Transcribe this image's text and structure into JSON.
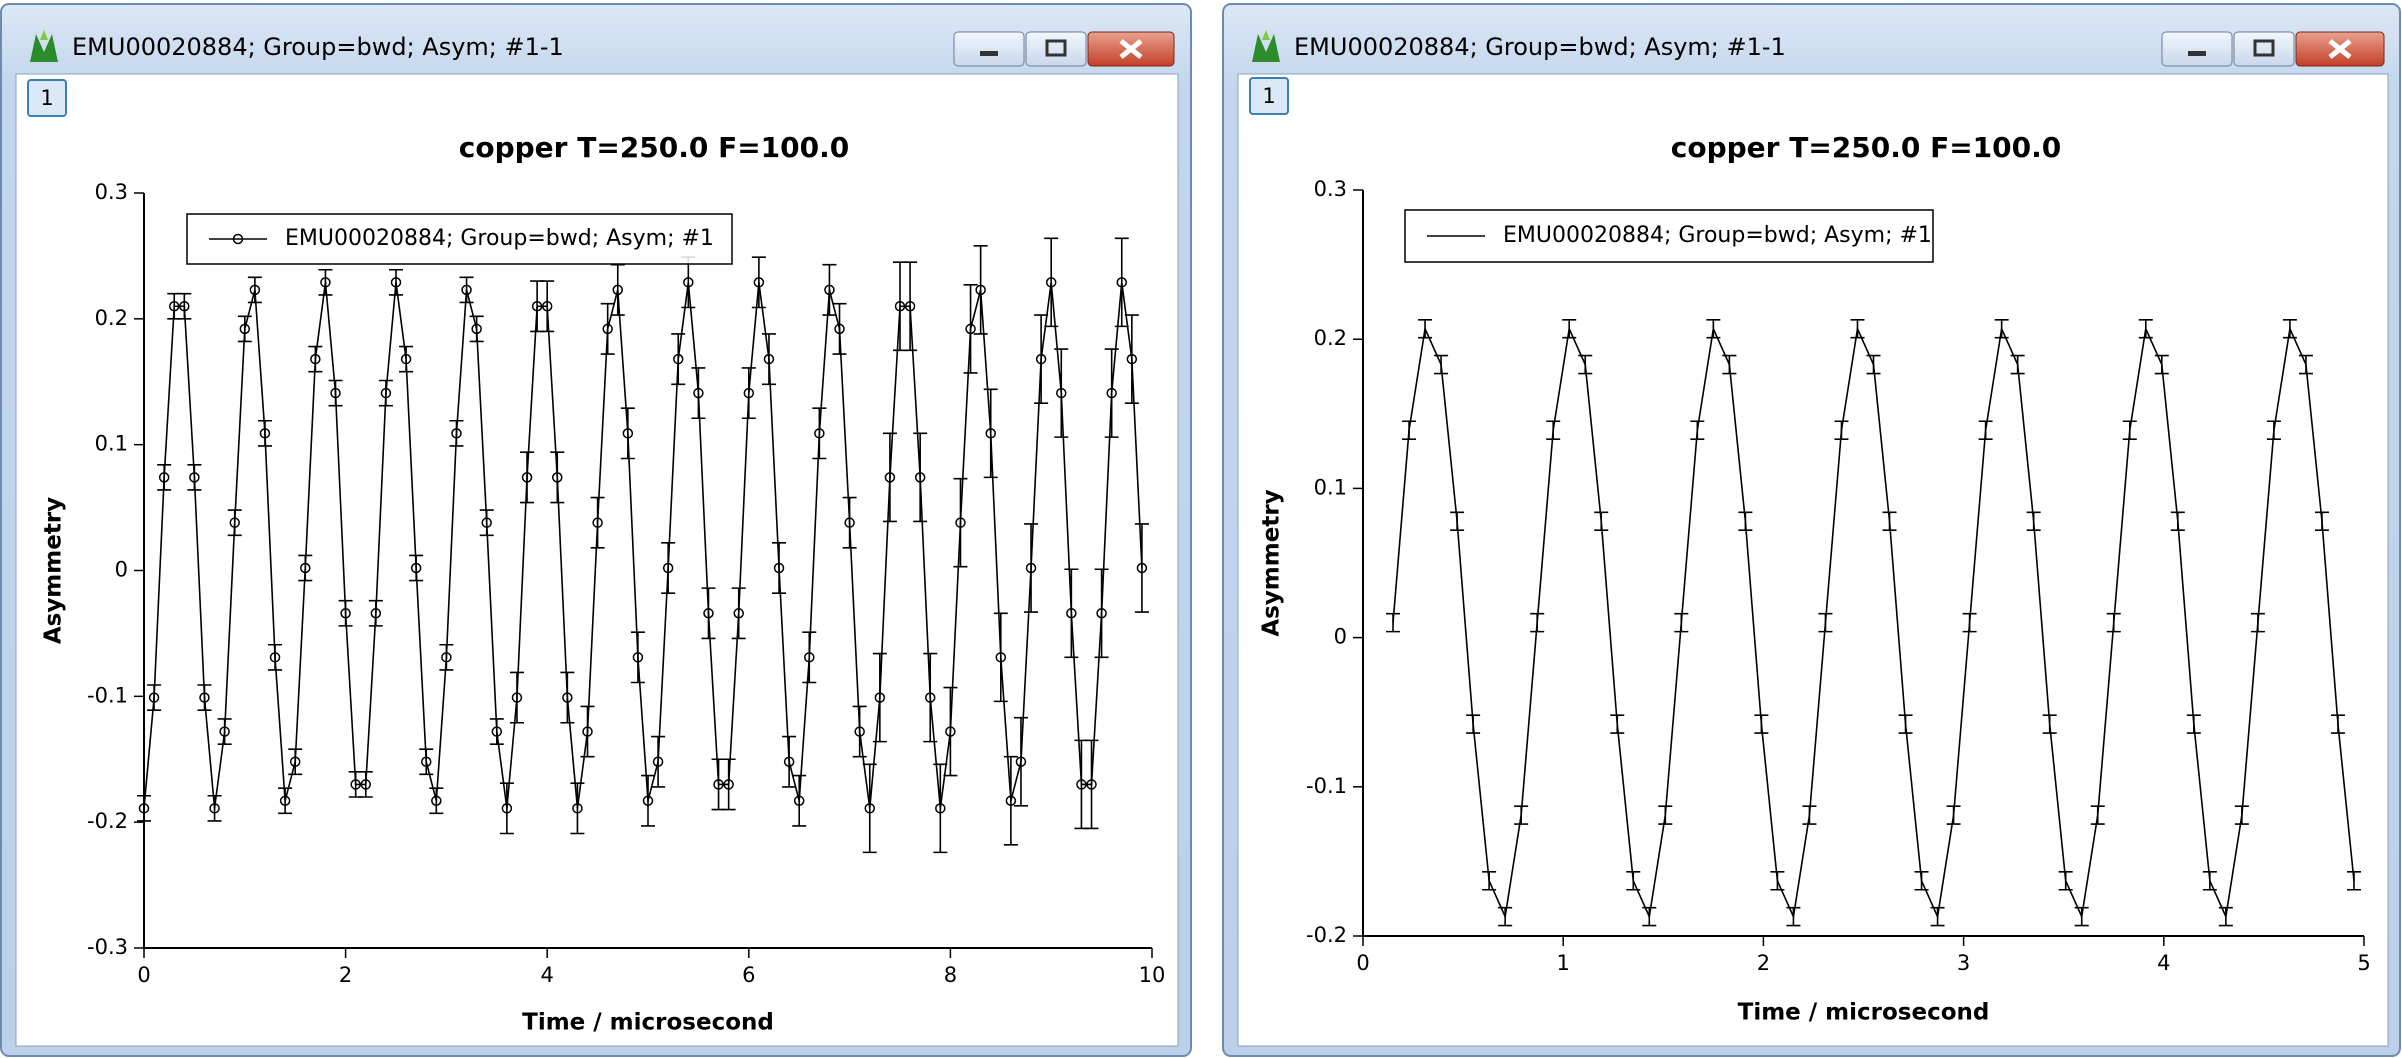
{
  "windows": [
    {
      "title": "EMU00020884; Group=bwd; Asym; #1-1",
      "tab": "1"
    },
    {
      "title": "EMU00020884; Group=bwd; Asym; #1-1",
      "tab": "1"
    }
  ],
  "chart_data": [
    {
      "type": "line",
      "title": "copper T=250.0 F=100.0",
      "xlabel": "Time / microsecond",
      "ylabel": "Asymmetry",
      "xlim": [
        0,
        10
      ],
      "ylim": [
        -0.3,
        0.3
      ],
      "xticks": [
        0,
        2,
        4,
        6,
        8,
        10
      ],
      "yticks": [
        -0.3,
        -0.2,
        -0.1,
        0,
        0.1,
        0.2,
        0.3
      ],
      "markers": true,
      "legend": "top-left",
      "x": [
        0,
        0.1,
        0.2,
        0.3,
        0.4,
        0.5,
        0.6,
        0.7,
        0.8,
        0.9,
        1,
        1.1,
        1.2,
        1.3,
        1.4,
        1.5,
        1.6,
        1.7,
        1.8,
        1.9,
        2,
        2.1,
        2.2,
        2.3,
        2.4,
        2.5,
        2.6,
        2.7,
        2.8,
        2.9,
        3,
        3.1,
        3.2,
        3.3,
        3.4,
        3.5,
        3.6,
        3.7,
        3.8,
        3.9,
        4,
        4.1,
        4.2,
        4.3,
        4.4,
        4.5,
        4.6,
        4.7,
        4.8,
        4.9,
        5,
        5.1,
        5.2,
        5.3,
        5.4,
        5.5,
        5.6,
        5.7,
        5.8,
        5.9,
        6,
        6.1,
        6.2,
        6.3,
        6.4,
        6.5,
        6.6,
        6.7,
        6.8,
        6.9,
        7,
        7.1,
        7.2,
        7.3,
        7.4,
        7.5,
        7.6,
        7.7,
        7.8,
        7.9,
        8,
        8.1,
        8.2,
        8.3,
        8.4,
        8.5,
        8.6,
        8.7,
        8.8,
        8.9,
        9,
        9.1,
        9.2,
        9.3,
        9.4,
        9.5,
        9.6,
        9.7,
        9.8,
        9.9
      ],
      "series": [
        {
          "name": "EMU00020884; Group=bwd; Asym; #1",
          "color": "#000000",
          "values": [
            -0.189,
            -0.101,
            0.074,
            0.21,
            0.21,
            0.074,
            -0.101,
            -0.189,
            -0.128,
            0.038,
            0.192,
            0.223,
            0.109,
            -0.069,
            -0.183,
            -0.152,
            0.002,
            0.168,
            0.229,
            0.141,
            -0.034,
            -0.17,
            -0.17,
            -0.034,
            0.141,
            0.229,
            0.168,
            0.002,
            -0.152,
            -0.183,
            -0.069,
            0.109,
            0.223,
            0.192,
            0.038,
            -0.128,
            -0.189,
            -0.101,
            0.074,
            0.21,
            0.21,
            0.074,
            -0.101,
            -0.189,
            -0.128,
            0.038,
            0.192,
            0.223,
            0.109,
            -0.069,
            -0.183,
            -0.152,
            0.002,
            0.168,
            0.229,
            0.141,
            -0.034,
            -0.17,
            -0.17,
            -0.034,
            0.141,
            0.229,
            0.168,
            0.002,
            -0.152,
            -0.183,
            -0.069,
            0.109,
            0.223,
            0.192,
            0.038,
            -0.128,
            -0.189,
            -0.101,
            0.074,
            0.21,
            0.21,
            0.074,
            -0.101,
            -0.189,
            -0.128,
            0.038,
            0.192,
            0.223,
            0.109,
            -0.069,
            -0.183,
            -0.152,
            0.002,
            0.168,
            0.229,
            0.141,
            -0.034,
            -0.17,
            -0.17,
            -0.034,
            0.141,
            0.229,
            0.168,
            0.002
          ],
          "errors": [
            0.01,
            0.01,
            0.01,
            0.01,
            0.01,
            0.01,
            0.01,
            0.01,
            0.01,
            0.01,
            0.01,
            0.01,
            0.01,
            0.01,
            0.01,
            0.01,
            0.01,
            0.01,
            0.01,
            0.01,
            0.01,
            0.01,
            0.01,
            0.01,
            0.01,
            0.01,
            0.01,
            0.01,
            0.01,
            0.01,
            0.01,
            0.01,
            0.01,
            0.01,
            0.01,
            0.01,
            0.02,
            0.02,
            0.02,
            0.02,
            0.02,
            0.02,
            0.02,
            0.02,
            0.02,
            0.02,
            0.02,
            0.02,
            0.02,
            0.02,
            0.02,
            0.02,
            0.02,
            0.02,
            0.02,
            0.02,
            0.02,
            0.02,
            0.02,
            0.02,
            0.02,
            0.02,
            0.02,
            0.02,
            0.02,
            0.02,
            0.02,
            0.02,
            0.02,
            0.02,
            0.02,
            0.02,
            0.035,
            0.035,
            0.035,
            0.035,
            0.035,
            0.035,
            0.035,
            0.035,
            0.035,
            0.035,
            0.035,
            0.035,
            0.035,
            0.035,
            0.035,
            0.035,
            0.035,
            0.035,
            0.035,
            0.035,
            0.035,
            0.035,
            0.035,
            0.035,
            0.035,
            0.035,
            0.035,
            0.035
          ]
        }
      ]
    },
    {
      "type": "line",
      "title": "copper T=250.0 F=100.0",
      "xlabel": "Time / microsecond",
      "ylabel": "Asymmetry",
      "xlim": [
        0,
        5
      ],
      "ylim": [
        -0.2,
        0.3
      ],
      "xticks": [
        0,
        1,
        2,
        3,
        4,
        5
      ],
      "yticks": [
        -0.2,
        -0.1,
        0,
        0.1,
        0.2,
        0.3
      ],
      "markers": false,
      "legend": "top-left",
      "x": [
        0.15,
        0.23,
        0.31,
        0.39,
        0.47,
        0.55,
        0.63,
        0.71,
        0.79,
        0.87,
        0.95,
        1.03,
        1.11,
        1.19,
        1.27,
        1.35,
        1.43,
        1.51,
        1.59,
        1.67,
        1.75,
        1.83,
        1.91,
        1.99,
        2.07,
        2.15,
        2.23,
        2.31,
        2.39,
        2.47,
        2.55,
        2.63,
        2.71,
        2.79,
        2.87,
        2.95,
        3.03,
        3.11,
        3.19,
        3.27,
        3.35,
        3.43,
        3.51,
        3.59,
        3.67,
        3.75,
        3.83,
        3.91,
        3.99,
        4.07,
        4.15,
        4.23,
        4.31,
        4.39,
        4.47,
        4.55,
        4.63,
        4.71,
        4.79,
        4.87,
        4.95
      ],
      "series": [
        {
          "name": "EMU00020884; Group=bwd; Asym; #1",
          "color": "#000000",
          "values": [
            0.01,
            0.139,
            0.207,
            0.183,
            0.078,
            -0.058,
            -0.163,
            -0.187,
            -0.119,
            0.01,
            0.139,
            0.207,
            0.183,
            0.078,
            -0.058,
            -0.163,
            -0.187,
            -0.119,
            0.01,
            0.139,
            0.207,
            0.183,
            0.078,
            -0.058,
            -0.163,
            -0.187,
            -0.119,
            0.01,
            0.139,
            0.207,
            0.183,
            0.078,
            -0.058,
            -0.163,
            -0.187,
            -0.119,
            0.01,
            0.139,
            0.207,
            0.183,
            0.078,
            -0.058,
            -0.163,
            -0.187,
            -0.119,
            0.01,
            0.139,
            0.207,
            0.183,
            0.078,
            -0.058,
            -0.163,
            -0.187,
            -0.119,
            0.01,
            0.139,
            0.207,
            0.183,
            0.078,
            -0.058,
            -0.163
          ],
          "errors": [
            0.006,
            0.006,
            0.006,
            0.006,
            0.006,
            0.006,
            0.006,
            0.006,
            0.006,
            0.006,
            0.006,
            0.006,
            0.006,
            0.006,
            0.006,
            0.006,
            0.006,
            0.006,
            0.006,
            0.006,
            0.006,
            0.006,
            0.006,
            0.006,
            0.006,
            0.006,
            0.006,
            0.006,
            0.006,
            0.006,
            0.006,
            0.006,
            0.006,
            0.006,
            0.006,
            0.006,
            0.006,
            0.006,
            0.006,
            0.006,
            0.006,
            0.006,
            0.006,
            0.006,
            0.006,
            0.006,
            0.006,
            0.006,
            0.006,
            0.006,
            0.006,
            0.006,
            0.006,
            0.006,
            0.006,
            0.006,
            0.006,
            0.006,
            0.006,
            0.006,
            0.006
          ]
        }
      ]
    }
  ]
}
